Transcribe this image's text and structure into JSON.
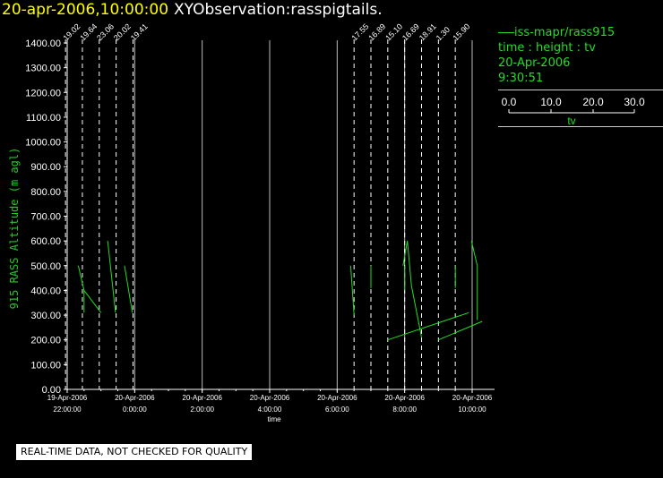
{
  "header": {
    "date_time": "20-apr-2006,10:00:00",
    "observation": "XYObservation:rasspigtails."
  },
  "legend": {
    "series_label": "iss-mapr/rass915",
    "caption": "time : height : tv",
    "date": "20-Apr-2006",
    "time": "9:30:51",
    "scale_ticks": [
      "0.0",
      "10.0",
      "20.0",
      "30.0"
    ],
    "scale_label": "tv"
  },
  "notice": "REAL-TIME DATA, NOT CHECKED FOR QUALITY",
  "colors": {
    "series": "#22dd22",
    "axis": "#ffffff",
    "accent_title": "#ffff00",
    "ylabel": "#22cc22"
  },
  "chart_data": {
    "type": "line",
    "title": "XYObservation:rasspigtails.",
    "xlabel": "time",
    "ylabel": "915 RASS Altitude (m agl)",
    "x_unit": "hours since 19-Apr-2006 22:00",
    "xlim": [
      -0.1,
      12.2
    ],
    "ylim": [
      0,
      1400
    ],
    "ytick_labels": [
      "0.00",
      "100.00",
      "200.00",
      "300.00",
      "400.00",
      "500.00",
      "600.00",
      "700.00",
      "800.00",
      "900.00",
      "1000.00",
      "1100.00",
      "1200.00",
      "1300.00",
      "1400.00"
    ],
    "xtick_labels": [
      {
        "x": 0,
        "date": "19-Apr-2006",
        "time": "22:00:00"
      },
      {
        "x": 2,
        "date": "20-Apr-2006",
        "time": "0:00:00"
      },
      {
        "x": 4,
        "date": "20-Apr-2006",
        "time": "2:00:00"
      },
      {
        "x": 6,
        "date": "20-Apr-2006",
        "time": "4:00:00"
      },
      {
        "x": 8,
        "date": "20-Apr-2006",
        "time": "6:00:00"
      },
      {
        "x": 10,
        "date": "20-Apr-2006",
        "time": "8:00:00"
      },
      {
        "x": 12,
        "date": "20-Apr-2006",
        "time": "10:00:00"
      }
    ],
    "profiles": [
      {
        "t": -0.05,
        "label": "19.02"
      },
      {
        "t": 0.45,
        "label": "19.64"
      },
      {
        "t": 0.95,
        "label": "23.06"
      },
      {
        "t": 1.45,
        "label": "20.02"
      },
      {
        "t": 1.95,
        "label": "19.41"
      },
      {
        "t": 8.5,
        "label": "17.55"
      },
      {
        "t": 9.0,
        "label": "16.89"
      },
      {
        "t": 9.5,
        "label": "15.10"
      },
      {
        "t": 10.0,
        "label": "16.69"
      },
      {
        "t": 10.5,
        "label": "18.91"
      },
      {
        "t": 11.0,
        "label": "1.30"
      },
      {
        "t": 11.5,
        "label": "15.90"
      }
    ],
    "series": [
      {
        "points": [
          [
            0.33,
            500
          ],
          [
            0.5,
            400
          ],
          [
            1.0,
            310
          ]
        ]
      },
      {
        "points": [
          [
            0.5,
            400
          ],
          [
            0.5,
            310
          ]
        ]
      },
      {
        "points": [
          [
            1.2,
            600
          ],
          [
            1.43,
            310
          ]
        ]
      },
      {
        "points": [
          [
            1.7,
            500
          ],
          [
            1.93,
            310
          ]
        ]
      },
      {
        "points": [
          [
            8.4,
            500
          ],
          [
            8.5,
            300
          ]
        ]
      },
      {
        "points": [
          [
            9.0,
            500
          ],
          [
            9.0,
            410
          ]
        ]
      },
      {
        "points": [
          [
            9.95,
            500
          ],
          [
            10.08,
            600
          ],
          [
            10.2,
            420
          ],
          [
            10.5,
            210
          ]
        ]
      },
      {
        "points": [
          [
            10.0,
            400
          ],
          [
            10.0,
            500
          ]
        ]
      },
      {
        "points": [
          [
            9.5,
            200
          ],
          [
            11.9,
            310
          ]
        ]
      },
      {
        "points": [
          [
            11.0,
            200
          ],
          [
            12.3,
            275
          ]
        ]
      },
      {
        "points": [
          [
            11.5,
            500
          ],
          [
            11.5,
            410
          ]
        ]
      },
      {
        "points": [
          [
            11.98,
            600
          ],
          [
            12.15,
            500
          ],
          [
            12.15,
            280
          ]
        ]
      }
    ]
  }
}
